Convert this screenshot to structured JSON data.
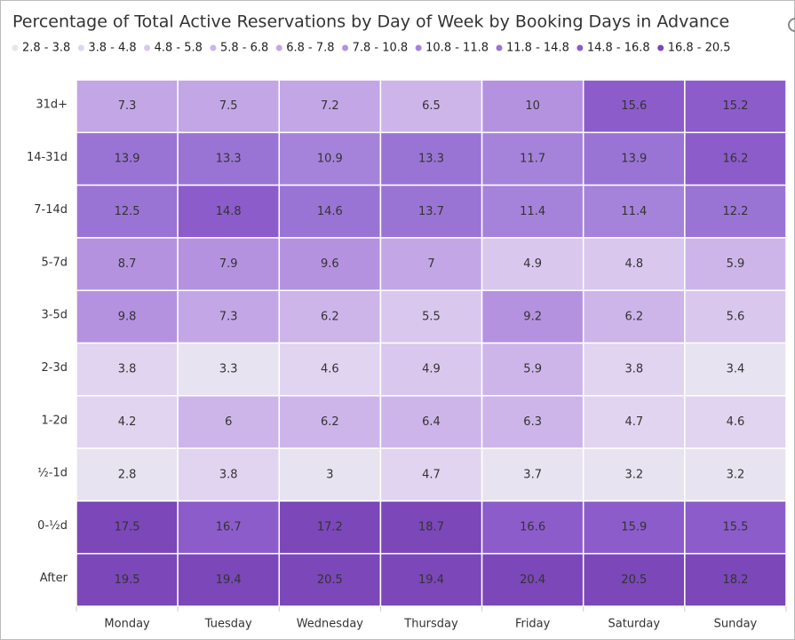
{
  "chart_data": {
    "type": "heatmap",
    "title": "Percentage of Total Active Reservations by Day of Week by Booking Days in Advance",
    "x_categories": [
      "Monday",
      "Tuesday",
      "Wednesday",
      "Thursday",
      "Friday",
      "Saturday",
      "Sunday"
    ],
    "y_categories": [
      "31d+",
      "14-31d",
      "7-14d",
      "5-7d",
      "3-5d",
      "2-3d",
      "1-2d",
      "½-1d",
      "0-½d",
      "After"
    ],
    "values": [
      [
        7.3,
        7.5,
        7.2,
        6.5,
        10,
        15.6,
        15.2
      ],
      [
        13.9,
        13.3,
        10.9,
        13.3,
        11.7,
        13.9,
        16.2
      ],
      [
        12.5,
        14.8,
        14.6,
        13.7,
        11.4,
        11.4,
        12.2
      ],
      [
        8.7,
        7.9,
        9.6,
        7,
        4.9,
        4.8,
        5.9
      ],
      [
        9.8,
        7.3,
        6.2,
        5.5,
        9.2,
        6.2,
        5.6
      ],
      [
        3.8,
        3.3,
        4.6,
        4.9,
        5.9,
        3.8,
        3.4
      ],
      [
        4.2,
        6,
        6.2,
        6.4,
        6.3,
        4.7,
        4.6
      ],
      [
        2.8,
        3.8,
        3,
        4.7,
        3.7,
        3.2,
        3.2
      ],
      [
        17.5,
        16.7,
        17.2,
        18.7,
        16.6,
        15.9,
        15.5
      ],
      [
        19.5,
        19.4,
        20.5,
        19.4,
        20.4,
        20.5,
        18.2
      ]
    ],
    "legend": [
      {
        "label": "2.8 - 3.8",
        "color": "#e7e3f0"
      },
      {
        "label": "3.8 - 4.8",
        "color": "#e1d4f0"
      },
      {
        "label": "4.8 - 5.8",
        "color": "#d9c7ee"
      },
      {
        "label": "5.8 - 6.8",
        "color": "#cdb5ea"
      },
      {
        "label": "6.8 - 7.8",
        "color": "#c3a6e5"
      },
      {
        "label": "7.8 - 10.8",
        "color": "#b592df"
      },
      {
        "label": "10.8 - 11.8",
        "color": "#a683da"
      },
      {
        "label": "11.8 - 14.8",
        "color": "#9a74d4"
      },
      {
        "label": "14.8 - 16.8",
        "color": "#8c5ccb"
      },
      {
        "label": "16.8 - 20.5",
        "color": "#7b47b9"
      }
    ]
  }
}
